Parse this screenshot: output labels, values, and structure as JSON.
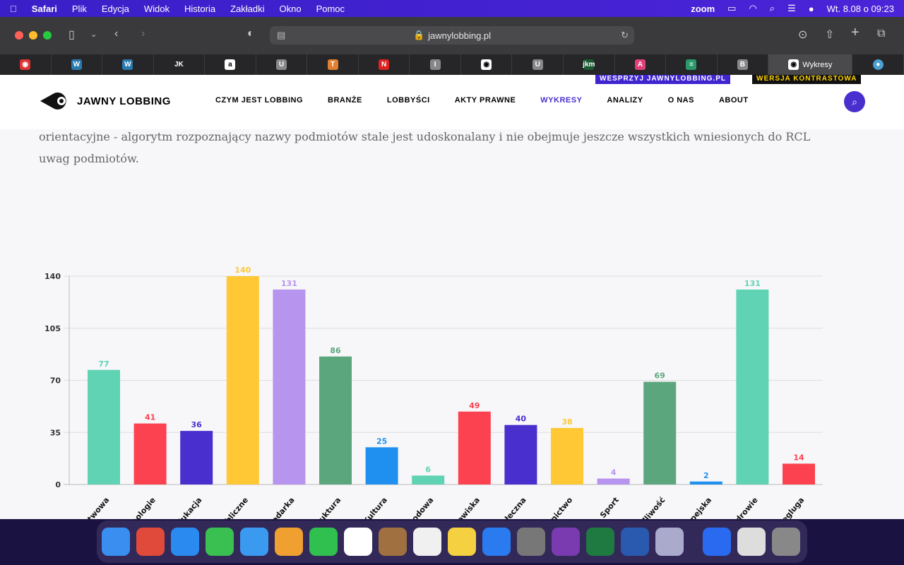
{
  "menubar": {
    "apple": "",
    "app": "Safari",
    "items": [
      "Plik",
      "Edycja",
      "Widok",
      "Historia",
      "Zakładki",
      "Okno",
      "Pomoc"
    ],
    "zoom": "zoom",
    "datetime": "Wt. 8.08 o  09:23"
  },
  "toolbar": {
    "url": "jawnylobbing.pl"
  },
  "tabs": [
    {
      "icon": "◉",
      "color": "#d33"
    },
    {
      "icon": "W",
      "color": "#2a7ab0"
    },
    {
      "icon": "W",
      "color": "#2a7ab0"
    },
    {
      "icon": "JK",
      "color": "#262527"
    },
    {
      "icon": "a",
      "color": "#fff"
    },
    {
      "icon": "U",
      "color": "#888"
    },
    {
      "icon": "T",
      "color": "#e08030"
    },
    {
      "icon": "N",
      "color": "#d22"
    },
    {
      "icon": "I",
      "color": "#888"
    },
    {
      "icon": "◉",
      "color": "#fff"
    },
    {
      "icon": "U",
      "color": "#888"
    },
    {
      "icon": "jkm",
      "color": "#1a5a30"
    },
    {
      "icon": "A",
      "color": "#e0407a"
    },
    {
      "icon": "≡",
      "color": "#2a9a6a"
    },
    {
      "icon": "B",
      "color": "#888"
    }
  ],
  "active_tab": {
    "label": "Wykresy"
  },
  "site": {
    "support": "WESPRZYJ JAWNYLOBBING.PL",
    "contrast": "WERSJA KONTRASTOWA",
    "logo": "JAWNY LOBBING",
    "nav": [
      "CZYM JEST LOBBING",
      "BRANŻE",
      "LOBBYŚCI",
      "AKTY PRAWNE",
      "WYKRESY",
      "ANALIZY",
      "O NAS",
      "ABOUT"
    ],
    "nav_active": "WYKRESY",
    "accent": "#4a2fcf"
  },
  "paragraph": "orientacyjne - algorytm rozpoznający nazwy podmiotów stale jest udoskonalany i nie obejmuje jeszcze wszystkich wniesionych do RCL uwag podmiotów.",
  "chart_data": {
    "type": "bar",
    "categories": [
      "Administracja państwowa",
      "Cyfryzacja i technologie",
      "Edukacja",
      "Finanse publiczne",
      "Gospodarka",
      "Infrastruktura",
      "Kultura",
      "Obrona narodowa",
      "Ochrona środowiska",
      "Polityka społeczna",
      "Rolnictwo",
      "Sport",
      "Sprawiedliwość",
      "Unia Europejska",
      "Zdrowie",
      "Żegluga"
    ],
    "values": [
      77,
      41,
      36,
      140,
      131,
      86,
      25,
      6,
      49,
      40,
      38,
      4,
      69,
      2,
      131,
      14
    ],
    "colors": [
      "#5fd3b3",
      "#fc4250",
      "#4a2fcf",
      "#ffc834",
      "#b794ee",
      "#5ca67e",
      "#2090f0",
      "#5fd3b3",
      "#fc4250",
      "#4a2fcf",
      "#ffc834",
      "#b794ee",
      "#5ca67e",
      "#2090f0",
      "#5fd3b3",
      "#fc4250"
    ],
    "yticks": [
      0,
      35,
      70,
      105,
      140
    ],
    "ylim": [
      0,
      140
    ],
    "grid": true
  },
  "dock": [
    "#3a8ef0",
    "#e04a3a",
    "#2a8af0",
    "#3ac050",
    "#3a9af0",
    "#f0a030",
    "#30c050",
    "#ffffff",
    "#a07040",
    "#f0f0f0",
    "#f5d040",
    "#2a7af0",
    "#777",
    "#7a3ab0",
    "#1e7a40",
    "#2a5ab0",
    "#aac",
    "#2a6af0",
    "#ddd",
    "#888"
  ]
}
